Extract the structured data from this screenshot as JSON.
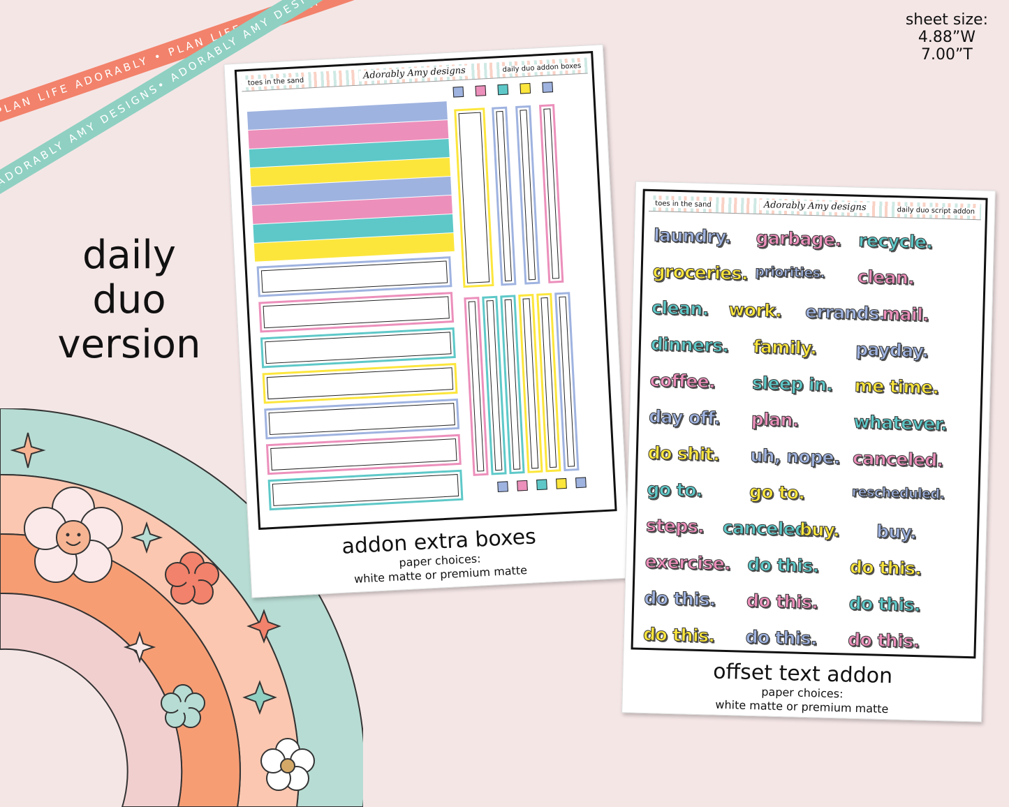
{
  "ribbons": {
    "top": "PLAN LIFE ADORABLY • PLAN LIFE ADORABLY • PLAN LIFE ADORABLY",
    "bottom": "ADORABLY AMY DESIGNS• ADORABLY AMY DESIGNS• ADORABLY AMY DESIGNS"
  },
  "sheet_size": {
    "label": "sheet size:",
    "width": "4.88”W",
    "height": "7.00”T"
  },
  "version": {
    "line1": "daily",
    "line2": "duo",
    "line3": "version"
  },
  "colors": {
    "blue": "#9fb3e0",
    "pink": "#ec8fbb",
    "teal": "#5ec8c8",
    "yellow": "#fce63c"
  },
  "card1": {
    "header_left": "toes in the sand",
    "header_logo": "Adorably Amy designs",
    "header_right": "daily duo addon boxes",
    "title": "addon extra boxes",
    "paper_label": "paper choices:",
    "paper_options": "white matte or premium matte"
  },
  "card2": {
    "header_left": "toes in the sand",
    "header_logo": "Adorably Amy designs",
    "header_right": "daily duo script addon",
    "title": "offset text addon",
    "paper_label": "paper choices:",
    "paper_options": "white matte or premium matte",
    "words": [
      [
        "laundry.",
        "garbage.",
        "recycle."
      ],
      [
        "groceries.",
        "priorities.",
        "clean."
      ],
      [
        "clean.",
        "work.",
        "errands.",
        "mail."
      ],
      [
        "dinners.",
        "family.",
        "payday."
      ],
      [
        "coffee.",
        "sleep in.",
        "me time."
      ],
      [
        "day off.",
        "plan.",
        "whatever."
      ],
      [
        "do shit.",
        "uh, nope.",
        "canceled."
      ],
      [
        "go to.",
        "go to.",
        "rescheduled."
      ],
      [
        "steps.",
        "canceled.",
        "buy.",
        "buy."
      ],
      [
        "exercise.",
        "do this.",
        "do this."
      ],
      [
        "do this.",
        "do this.",
        "do this."
      ],
      [
        "do this.",
        "do this.",
        "do this."
      ]
    ]
  }
}
